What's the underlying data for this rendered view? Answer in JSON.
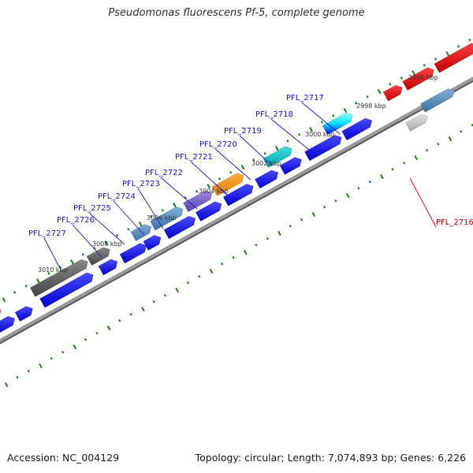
{
  "title": "Pseudomonas fluorescens Pf-5, complete genome",
  "footer": {
    "accession": "Accession: NC_004129",
    "summary": "Topology: circular; Length: 7,074,893 bp; Genes: 6,226"
  },
  "colors": {
    "forward_cds": "#0000ee",
    "backbone": "#777777",
    "tick": "#118811",
    "label_default": "#1a1acc",
    "label_highlight": "#dd0000"
  },
  "kbp_labels": [
    "2996 kbp",
    "2998 kbp",
    "3000 kbp",
    "3002 kbp",
    "3004 kbp",
    "3006 kbp",
    "3008 kbp",
    "3010 kbp"
  ],
  "gene_labels": [
    {
      "text": "PFL_2717",
      "color": "#1a1acc"
    },
    {
      "text": "PFL_2718",
      "color": "#1a1acc"
    },
    {
      "text": "PFL_2719",
      "color": "#1a1acc"
    },
    {
      "text": "PFL_2720",
      "color": "#1a1acc"
    },
    {
      "text": "PFL_2721",
      "color": "#1a1acc"
    },
    {
      "text": "PFL_2722",
      "color": "#1a1acc"
    },
    {
      "text": "PFL_2723",
      "color": "#1a1acc"
    },
    {
      "text": "PFL_2724",
      "color": "#1a1acc"
    },
    {
      "text": "PFL_2725",
      "color": "#1a1acc"
    },
    {
      "text": "PFL_2726",
      "color": "#1a1acc"
    },
    {
      "text": "PFL_2727",
      "color": "#1a1acc"
    },
    {
      "text": "PFL_2716",
      "color": "#dd0000"
    }
  ]
}
